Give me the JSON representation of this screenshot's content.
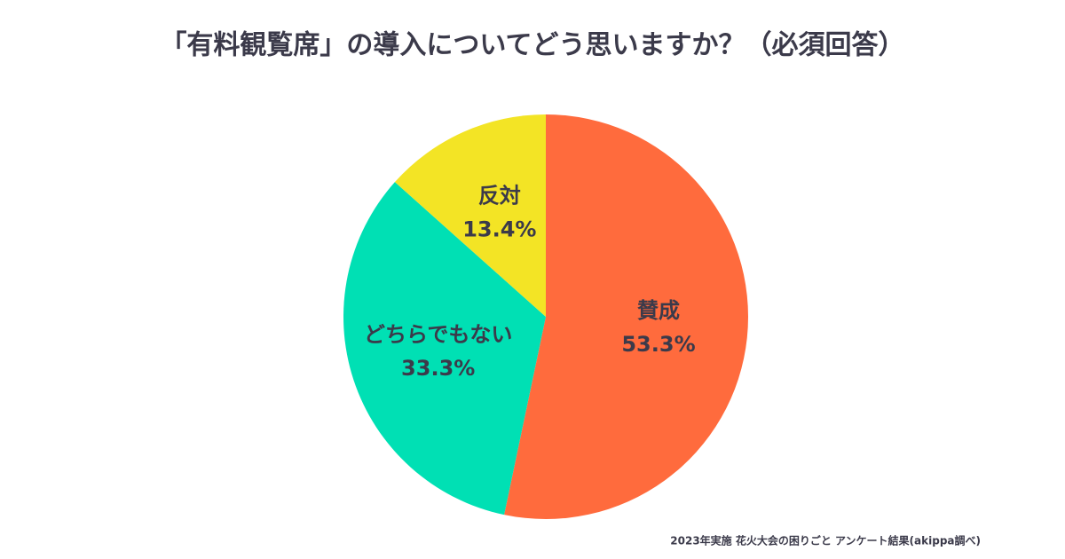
{
  "chart_data": {
    "type": "pie",
    "title": "「有料観覧席」の導入についてどう思いますか？（必須回答）",
    "categories": [
      "賛成",
      "どちらでもない",
      "反対"
    ],
    "values": [
      53.3,
      33.3,
      13.4
    ],
    "value_labels": [
      "53.3%",
      "33.3%",
      "13.4%"
    ],
    "colors": [
      "#ff6b3d",
      "#00e0b4",
      "#f3e425"
    ],
    "note": "2023年実施 花火大会の困りごと アンケート結果(akippa調べ)"
  }
}
